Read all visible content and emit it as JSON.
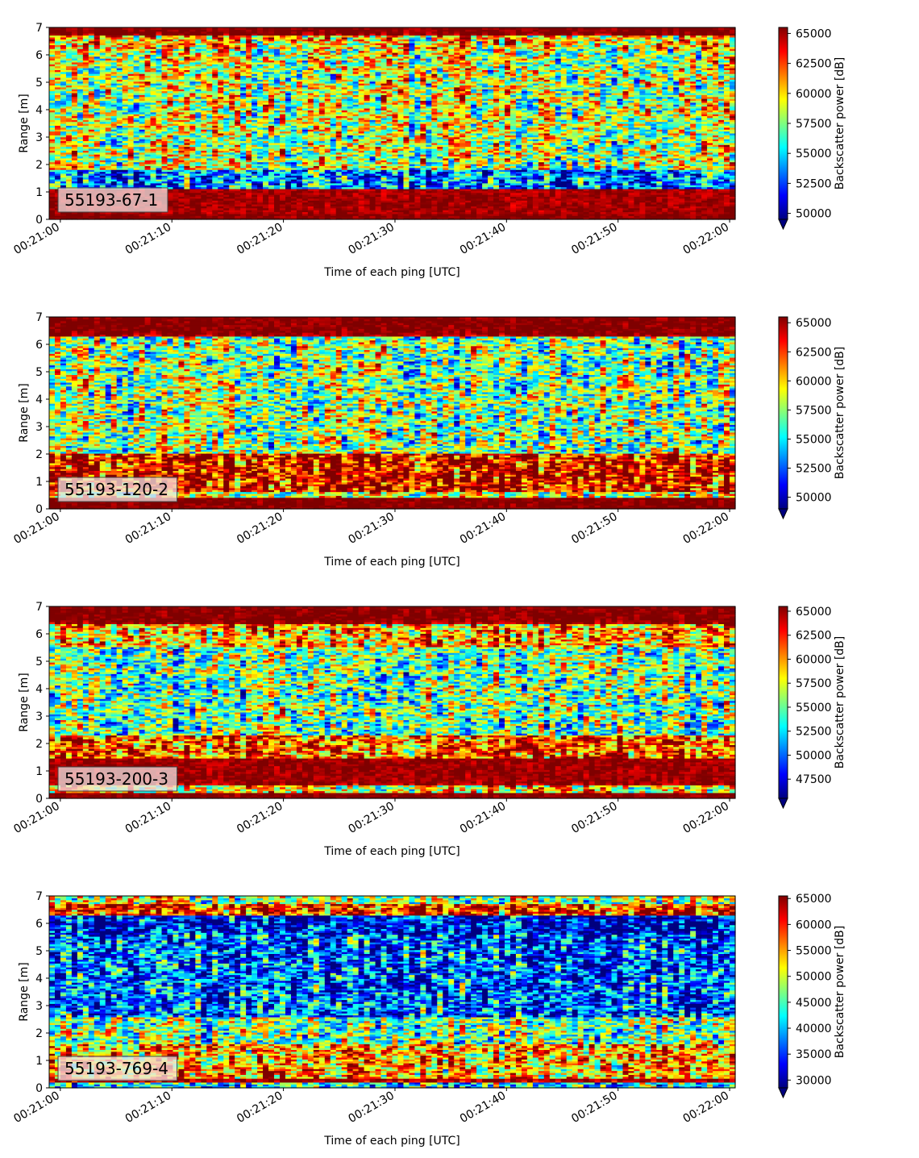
{
  "figure": {
    "x_axis_label": "Time of each ping [UTC]",
    "y_axis_label": "Range [m]",
    "colorbar_label": "Backscatter power [dB]",
    "colormap": "jet",
    "colormap_stops": [
      "#00007f",
      "#0000ff",
      "#007fff",
      "#00ffff",
      "#7fff7f",
      "#ffff00",
      "#ff7f00",
      "#ff0000",
      "#7f0000"
    ]
  },
  "chart_data": [
    {
      "type": "heatmap",
      "label": "55193-67-1",
      "x_range": [
        "00:20:59",
        "00:22:00.5"
      ],
      "x_ticks": [
        "00:21:00",
        "00:21:10",
        "00:21:20",
        "00:21:30",
        "00:21:40",
        "00:21:50",
        "00:22:00"
      ],
      "y_range": [
        0,
        7
      ],
      "y_ticks": [
        0,
        1,
        2,
        3,
        4,
        5,
        6,
        7
      ],
      "color_range": [
        49500,
        65500
      ],
      "colorbar_ticks": [
        50000,
        52500,
        55000,
        57500,
        60000,
        62500,
        65000
      ],
      "colorbar_extend": "min",
      "range_profile": [
        {
          "range": [
            0.0,
            0.2
          ],
          "value": 65500
        },
        {
          "range": [
            0.2,
            1.1
          ],
          "value": 65000
        },
        {
          "range": [
            1.1,
            1.8
          ],
          "value": 53500
        },
        {
          "range": [
            1.8,
            6.2
          ],
          "value": 58500
        },
        {
          "range": [
            6.2,
            6.7
          ],
          "value": 60000
        },
        {
          "range": [
            6.7,
            7.0
          ],
          "value": 65500
        }
      ]
    },
    {
      "type": "heatmap",
      "label": "55193-120-2",
      "x_range": [
        "00:20:59",
        "00:22:00.5"
      ],
      "x_ticks": [
        "00:21:00",
        "00:21:10",
        "00:21:20",
        "00:21:30",
        "00:21:40",
        "00:21:50",
        "00:22:00"
      ],
      "y_range": [
        0,
        7
      ],
      "y_ticks": [
        0,
        1,
        2,
        3,
        4,
        5,
        6,
        7
      ],
      "color_range": [
        49000,
        65500
      ],
      "colorbar_ticks": [
        50000,
        52500,
        55000,
        57500,
        60000,
        62500,
        65000
      ],
      "colorbar_extend": "min",
      "range_profile": [
        {
          "range": [
            0.0,
            0.4
          ],
          "value": 65500
        },
        {
          "range": [
            0.4,
            0.6
          ],
          "value": 59000
        },
        {
          "range": [
            0.6,
            2.0
          ],
          "value": 64000
        },
        {
          "range": [
            2.0,
            6.3
          ],
          "value": 57500
        },
        {
          "range": [
            6.3,
            7.0
          ],
          "value": 65500
        }
      ]
    },
    {
      "type": "heatmap",
      "label": "55193-200-3",
      "x_range": [
        "00:20:59",
        "00:22:00.5"
      ],
      "x_ticks": [
        "00:21:00",
        "00:21:10",
        "00:21:20",
        "00:21:30",
        "00:21:40",
        "00:21:50",
        "00:22:00"
      ],
      "y_range": [
        0,
        7
      ],
      "y_ticks": [
        0,
        1,
        2,
        3,
        4,
        5,
        6,
        7
      ],
      "color_range": [
        45500,
        65500
      ],
      "colorbar_ticks": [
        47500,
        50000,
        52500,
        55000,
        57500,
        60000,
        62500,
        65000
      ],
      "colorbar_extend": "min",
      "range_profile": [
        {
          "range": [
            0.0,
            0.2
          ],
          "value": 65500
        },
        {
          "range": [
            0.2,
            0.5
          ],
          "value": 58000
        },
        {
          "range": [
            0.5,
            1.5
          ],
          "value": 65000
        },
        {
          "range": [
            1.5,
            2.3
          ],
          "value": 61000
        },
        {
          "range": [
            2.3,
            5.5
          ],
          "value": 55000
        },
        {
          "range": [
            5.5,
            6.4
          ],
          "value": 59000
        },
        {
          "range": [
            6.4,
            7.0
          ],
          "value": 65500
        }
      ]
    },
    {
      "type": "heatmap",
      "label": "55193-769-4",
      "x_range": [
        "00:20:59",
        "00:22:00.5"
      ],
      "x_ticks": [
        "00:21:00",
        "00:21:10",
        "00:21:20",
        "00:21:30",
        "00:21:40",
        "00:21:50",
        "00:22:00"
      ],
      "y_range": [
        0,
        7
      ],
      "y_ticks": [
        0,
        1,
        2,
        3,
        4,
        5,
        6,
        7
      ],
      "color_range": [
        28500,
        65500
      ],
      "colorbar_ticks": [
        30000,
        35000,
        40000,
        45000,
        50000,
        55000,
        60000,
        65000
      ],
      "colorbar_extend": "min",
      "range_profile": [
        {
          "range": [
            0.0,
            0.2
          ],
          "value": 44000
        },
        {
          "range": [
            0.2,
            0.35
          ],
          "value": 64000
        },
        {
          "range": [
            0.35,
            1.6
          ],
          "value": 55000
        },
        {
          "range": [
            1.6,
            2.6
          ],
          "value": 47000
        },
        {
          "range": [
            2.6,
            5.6
          ],
          "value": 37000
        },
        {
          "range": [
            5.6,
            6.3
          ],
          "value": 33000
        },
        {
          "range": [
            6.3,
            6.7
          ],
          "value": 60000
        },
        {
          "range": [
            6.7,
            7.0
          ],
          "value": 50000
        }
      ]
    }
  ]
}
